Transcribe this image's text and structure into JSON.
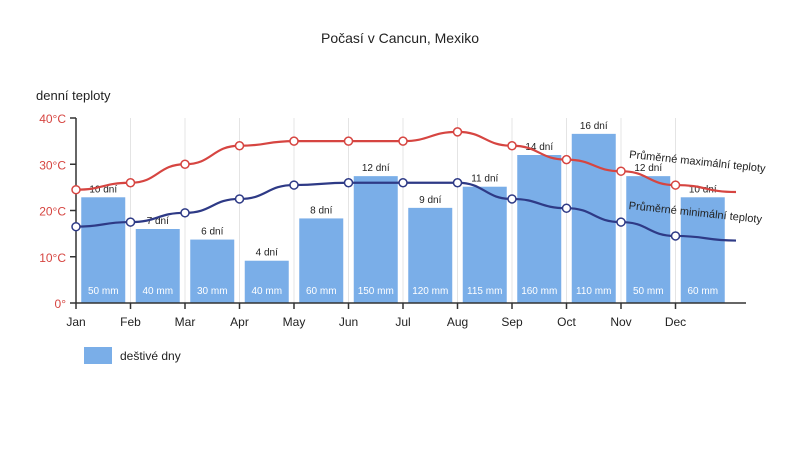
{
  "chart_data": {
    "type": "bar+line",
    "title": "Počasí v Cancun, Mexiko",
    "ylabel": "denní teploty",
    "ylim": [
      0,
      40
    ],
    "yticks": [
      {
        "value": 0,
        "label": "0°"
      },
      {
        "value": 10,
        "label": "10°C"
      },
      {
        "value": 20,
        "label": "20°C"
      },
      {
        "value": 30,
        "label": "30°C"
      },
      {
        "value": 40,
        "label": "40°C"
      }
    ],
    "categories": [
      "Jan",
      "Feb",
      "Mar",
      "Apr",
      "May",
      "Jun",
      "Jul",
      "Aug",
      "Sep",
      "Oct",
      "Nov",
      "Dec"
    ],
    "bars": {
      "legend": "deštivé dny",
      "color": "#7aaee8",
      "values": [
        10,
        7,
        6,
        4,
        8,
        12,
        9,
        11,
        14,
        16,
        12,
        10
      ],
      "top_labels": [
        "10 dní",
        "7 dní",
        "6 dní",
        "4 dní",
        "8 dní",
        "12 dní",
        "9 dní",
        "11 dní",
        "14 dní",
        "16 dní",
        "12 dní",
        "10 dní"
      ],
      "inner_labels": [
        "50 mm",
        "40 mm",
        "30 mm",
        "40 mm",
        "60 mm",
        "150 mm",
        "120 mm",
        "115 mm",
        "160 mm",
        "110 mm",
        "50 mm",
        "60 mm"
      ]
    },
    "series": [
      {
        "name": "Průměrné maximální teploty",
        "color": "#d64541",
        "values": [
          24.5,
          26,
          30,
          34,
          35,
          35,
          35,
          37,
          34,
          31,
          28.5,
          25.5
        ],
        "end": 24
      },
      {
        "name": "Průměrné minimální teploty",
        "color": "#2e3a86",
        "values": [
          16.5,
          17.5,
          19.5,
          22.5,
          25.5,
          26,
          26,
          26,
          22.5,
          20.5,
          17.5,
          14.5
        ],
        "end": 13.5
      }
    ]
  }
}
